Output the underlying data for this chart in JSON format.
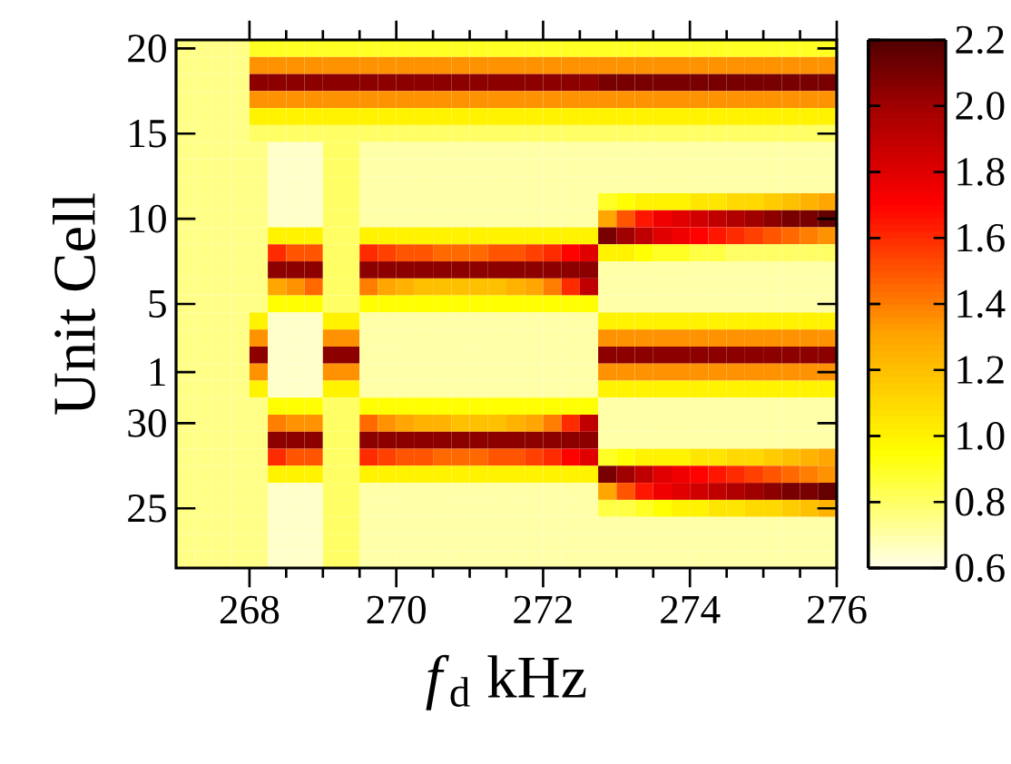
{
  "chart_data": {
    "type": "heatmap",
    "xlabel": "*f*$_{d}$ kHz",
    "ylabel": "Unit Cell",
    "x": [
      267.125,
      267.375,
      267.625,
      267.875,
      268.125,
      268.375,
      268.625,
      268.875,
      269.125,
      269.375,
      269.625,
      269.875,
      270.125,
      270.375,
      270.625,
      270.875,
      271.125,
      271.375,
      271.625,
      271.875,
      272.125,
      272.375,
      272.625,
      272.875,
      273.125,
      273.375,
      273.625,
      273.875,
      274.125,
      274.375,
      274.625,
      274.875,
      275.125,
      275.375,
      275.625,
      275.875
    ],
    "xlim": [
      267,
      276
    ],
    "xticks": [
      268,
      270,
      272,
      274,
      276
    ],
    "y_categories": [
      "20",
      null,
      null,
      null,
      null,
      "15",
      null,
      null,
      null,
      null,
      "10",
      null,
      null,
      null,
      null,
      "5",
      null,
      null,
      null,
      "1",
      null,
      null,
      "30",
      null,
      null,
      null,
      null,
      "25",
      null,
      null,
      null
    ],
    "clim": [
      0.6,
      2.2
    ],
    "cticks": [
      0.6,
      0.8,
      {
        "value": 1.0,
        "label": "1.0"
      },
      1.2,
      1.4,
      1.6,
      1.8,
      {
        "value": 2.0,
        "label": "2.0"
      },
      2.2
    ],
    "cells": [
      [
        0.75,
        0.75,
        0.75,
        0.75,
        0.9,
        0.9,
        0.9,
        0.9,
        0.9,
        0.9,
        0.9,
        0.9,
        0.9,
        0.9,
        0.9,
        0.9,
        0.9,
        0.9,
        0.9,
        0.9,
        0.9,
        0.9,
        0.9,
        0.9,
        0.9,
        0.9,
        0.9,
        0.9,
        0.9,
        0.9,
        0.9,
        0.9,
        0.9,
        0.9,
        0.9,
        0.9
      ],
      [
        0.75,
        0.75,
        0.75,
        0.75,
        1.35,
        1.35,
        1.35,
        1.35,
        1.35,
        1.35,
        1.35,
        1.35,
        1.35,
        1.35,
        1.35,
        1.35,
        1.35,
        1.35,
        1.35,
        1.35,
        1.35,
        1.35,
        1.35,
        1.35,
        1.35,
        1.35,
        1.35,
        1.35,
        1.35,
        1.35,
        1.35,
        1.35,
        1.35,
        1.35,
        1.35,
        1.35
      ],
      [
        0.75,
        0.75,
        0.75,
        0.75,
        2.05,
        2.05,
        2.05,
        2.05,
        2.05,
        2.05,
        2.05,
        2.05,
        2.05,
        2.05,
        2.05,
        2.05,
        2.05,
        2.05,
        2.05,
        2.05,
        2.05,
        2.05,
        2.05,
        2.1,
        2.1,
        2.1,
        2.1,
        2.1,
        2.1,
        2.1,
        2.1,
        2.1,
        2.1,
        2.1,
        2.1,
        2.1
      ],
      [
        0.75,
        0.75,
        0.75,
        0.75,
        1.35,
        1.35,
        1.35,
        1.35,
        1.35,
        1.35,
        1.35,
        1.35,
        1.35,
        1.35,
        1.35,
        1.35,
        1.35,
        1.35,
        1.35,
        1.35,
        1.35,
        1.35,
        1.35,
        1.35,
        1.35,
        1.35,
        1.35,
        1.35,
        1.35,
        1.35,
        1.35,
        1.35,
        1.35,
        1.35,
        1.35,
        1.35
      ],
      [
        0.75,
        0.75,
        0.75,
        0.75,
        1.0,
        1.0,
        1.0,
        1.0,
        1.0,
        1.0,
        1.0,
        1.0,
        1.0,
        1.0,
        1.0,
        1.0,
        1.0,
        1.0,
        1.0,
        1.0,
        1.0,
        1.0,
        1.0,
        1.0,
        1.0,
        1.0,
        1.0,
        1.0,
        1.0,
        1.0,
        1.0,
        1.0,
        1.0,
        1.0,
        1.0,
        1.0
      ],
      [
        0.75,
        0.75,
        0.75,
        0.75,
        0.8,
        0.8,
        0.8,
        0.8,
        0.8,
        0.8,
        0.8,
        0.8,
        0.8,
        0.8,
        0.8,
        0.8,
        0.8,
        0.8,
        0.8,
        0.8,
        0.8,
        0.8,
        0.8,
        0.8,
        0.8,
        0.8,
        0.8,
        0.8,
        0.8,
        0.8,
        0.8,
        0.8,
        0.8,
        0.8,
        0.8,
        0.8
      ],
      [
        0.75,
        0.75,
        0.75,
        0.75,
        0.75,
        0.65,
        0.65,
        0.65,
        0.8,
        0.8,
        0.7,
        0.7,
        0.7,
        0.7,
        0.7,
        0.7,
        0.7,
        0.7,
        0.7,
        0.7,
        0.7,
        0.7,
        0.7,
        0.7,
        0.7,
        0.7,
        0.7,
        0.7,
        0.7,
        0.7,
        0.7,
        0.7,
        0.7,
        0.7,
        0.7,
        0.7
      ],
      [
        0.75,
        0.75,
        0.75,
        0.75,
        0.75,
        0.65,
        0.65,
        0.65,
        0.8,
        0.8,
        0.7,
        0.7,
        0.7,
        0.7,
        0.7,
        0.7,
        0.7,
        0.7,
        0.7,
        0.7,
        0.7,
        0.7,
        0.7,
        0.7,
        0.7,
        0.7,
        0.7,
        0.7,
        0.7,
        0.7,
        0.7,
        0.7,
        0.7,
        0.7,
        0.7,
        0.7
      ],
      [
        0.75,
        0.75,
        0.75,
        0.75,
        0.75,
        0.65,
        0.65,
        0.65,
        0.8,
        0.8,
        0.7,
        0.7,
        0.7,
        0.7,
        0.7,
        0.7,
        0.7,
        0.7,
        0.7,
        0.7,
        0.7,
        0.7,
        0.7,
        0.7,
        0.7,
        0.7,
        0.7,
        0.7,
        0.7,
        0.7,
        0.7,
        0.7,
        0.7,
        0.7,
        0.7,
        0.7
      ],
      [
        0.75,
        0.75,
        0.75,
        0.75,
        0.75,
        0.65,
        0.65,
        0.65,
        0.8,
        0.8,
        0.7,
        0.7,
        0.7,
        0.7,
        0.7,
        0.7,
        0.7,
        0.7,
        0.7,
        0.7,
        0.7,
        0.7,
        0.7,
        0.9,
        0.95,
        1.0,
        1.0,
        1.0,
        1.05,
        1.05,
        1.1,
        1.1,
        1.15,
        1.2,
        1.25,
        1.3
      ],
      [
        0.75,
        0.75,
        0.75,
        0.75,
        0.75,
        0.65,
        0.65,
        0.65,
        0.8,
        0.8,
        0.7,
        0.7,
        0.7,
        0.7,
        0.7,
        0.7,
        0.7,
        0.7,
        0.7,
        0.7,
        0.7,
        0.7,
        0.7,
        1.3,
        1.5,
        1.65,
        1.75,
        1.8,
        1.85,
        1.9,
        1.95,
        2.0,
        2.05,
        2.1,
        2.1,
        2.15
      ],
      [
        0.75,
        0.75,
        0.75,
        0.75,
        0.75,
        1.0,
        1.0,
        1.0,
        0.8,
        0.8,
        1.0,
        1.0,
        1.0,
        1.0,
        1.0,
        1.0,
        1.0,
        1.0,
        1.0,
        1.0,
        1.0,
        1.0,
        1.0,
        2.1,
        2.0,
        1.9,
        1.8,
        1.75,
        1.7,
        1.65,
        1.6,
        1.55,
        1.5,
        1.45,
        1.4,
        1.35
      ],
      [
        0.75,
        0.75,
        0.75,
        0.75,
        0.75,
        1.6,
        1.5,
        1.5,
        0.8,
        0.8,
        1.6,
        1.55,
        1.5,
        1.5,
        1.45,
        1.45,
        1.45,
        1.5,
        1.5,
        1.55,
        1.6,
        1.7,
        1.8,
        1.0,
        1.0,
        0.95,
        0.9,
        0.9,
        0.85,
        0.85,
        0.8,
        0.8,
        0.8,
        0.8,
        0.8,
        0.8
      ],
      [
        0.75,
        0.75,
        0.75,
        0.75,
        0.75,
        2.05,
        2.05,
        2.05,
        0.8,
        0.8,
        2.05,
        2.05,
        2.05,
        2.05,
        2.05,
        2.05,
        2.05,
        2.05,
        2.05,
        2.05,
        2.05,
        2.05,
        2.05,
        0.7,
        0.7,
        0.7,
        0.7,
        0.7,
        0.7,
        0.7,
        0.7,
        0.7,
        0.7,
        0.7,
        0.7,
        0.7
      ],
      [
        0.75,
        0.75,
        0.75,
        0.75,
        0.75,
        1.3,
        1.35,
        1.45,
        0.8,
        0.8,
        1.4,
        1.3,
        1.25,
        1.2,
        1.2,
        1.2,
        1.2,
        1.2,
        1.25,
        1.3,
        1.4,
        1.6,
        1.9,
        0.7,
        0.7,
        0.7,
        0.7,
        0.7,
        0.7,
        0.7,
        0.7,
        0.7,
        0.7,
        0.7,
        0.7,
        0.7
      ],
      [
        0.75,
        0.75,
        0.75,
        0.75,
        0.75,
        0.95,
        0.95,
        0.95,
        0.8,
        0.8,
        0.95,
        0.95,
        0.95,
        0.95,
        0.95,
        0.95,
        0.95,
        0.95,
        0.95,
        0.95,
        0.95,
        0.95,
        0.95,
        0.7,
        0.7,
        0.7,
        0.7,
        0.7,
        0.7,
        0.7,
        0.7,
        0.7,
        0.7,
        0.7,
        0.7,
        0.7
      ],
      [
        0.75,
        0.75,
        0.75,
        0.75,
        1.0,
        0.65,
        0.65,
        0.65,
        1.0,
        1.0,
        0.7,
        0.7,
        0.7,
        0.7,
        0.7,
        0.7,
        0.7,
        0.7,
        0.7,
        0.7,
        0.7,
        0.7,
        0.7,
        1.0,
        1.0,
        1.0,
        1.0,
        1.0,
        1.0,
        1.0,
        1.0,
        1.0,
        1.0,
        1.0,
        1.0,
        1.0
      ],
      [
        0.75,
        0.75,
        0.75,
        0.75,
        1.35,
        0.65,
        0.65,
        0.65,
        1.35,
        1.35,
        0.7,
        0.7,
        0.7,
        0.7,
        0.7,
        0.7,
        0.7,
        0.7,
        0.7,
        0.7,
        0.7,
        0.7,
        0.7,
        1.35,
        1.35,
        1.35,
        1.35,
        1.35,
        1.35,
        1.35,
        1.35,
        1.35,
        1.35,
        1.35,
        1.35,
        1.35
      ],
      [
        0.75,
        0.75,
        0.75,
        0.75,
        2.05,
        0.65,
        0.65,
        0.65,
        2.05,
        2.05,
        0.7,
        0.7,
        0.7,
        0.7,
        0.7,
        0.7,
        0.7,
        0.7,
        0.7,
        0.7,
        0.7,
        0.7,
        0.7,
        2.05,
        2.05,
        2.05,
        2.05,
        2.05,
        2.05,
        2.05,
        2.05,
        2.05,
        2.05,
        2.05,
        2.05,
        2.05
      ],
      [
        0.75,
        0.75,
        0.75,
        0.75,
        1.35,
        0.65,
        0.65,
        0.65,
        1.35,
        1.35,
        0.7,
        0.7,
        0.7,
        0.7,
        0.7,
        0.7,
        0.7,
        0.7,
        0.7,
        0.7,
        0.7,
        0.7,
        0.7,
        1.35,
        1.35,
        1.35,
        1.35,
        1.35,
        1.35,
        1.35,
        1.35,
        1.35,
        1.35,
        1.35,
        1.35,
        1.35
      ],
      [
        0.75,
        0.75,
        0.75,
        0.75,
        1.0,
        0.65,
        0.65,
        0.65,
        1.0,
        1.0,
        0.7,
        0.7,
        0.7,
        0.7,
        0.7,
        0.7,
        0.7,
        0.7,
        0.7,
        0.7,
        0.7,
        0.7,
        0.7,
        1.0,
        1.0,
        1.0,
        1.0,
        1.0,
        1.0,
        1.0,
        1.0,
        1.0,
        1.0,
        1.0,
        1.0,
        1.0
      ],
      [
        0.75,
        0.75,
        0.75,
        0.75,
        0.75,
        0.95,
        0.95,
        0.95,
        0.8,
        0.8,
        0.95,
        0.95,
        0.95,
        0.95,
        0.95,
        0.95,
        0.95,
        0.95,
        0.95,
        0.95,
        0.95,
        0.95,
        0.95,
        0.7,
        0.7,
        0.7,
        0.7,
        0.7,
        0.7,
        0.7,
        0.7,
        0.7,
        0.7,
        0.7,
        0.7,
        0.7
      ],
      [
        0.75,
        0.75,
        0.75,
        0.75,
        0.75,
        1.4,
        1.35,
        1.35,
        0.8,
        0.8,
        1.45,
        1.35,
        1.3,
        1.25,
        1.25,
        1.2,
        1.2,
        1.2,
        1.25,
        1.3,
        1.4,
        1.6,
        1.9,
        0.7,
        0.7,
        0.7,
        0.7,
        0.7,
        0.7,
        0.7,
        0.7,
        0.7,
        0.7,
        0.7,
        0.7,
        0.7
      ],
      [
        0.75,
        0.75,
        0.75,
        0.75,
        0.75,
        2.05,
        2.05,
        2.05,
        0.8,
        0.8,
        2.05,
        2.05,
        2.05,
        2.05,
        2.05,
        2.05,
        2.05,
        2.05,
        2.05,
        2.05,
        2.05,
        2.05,
        2.05,
        0.7,
        0.7,
        0.7,
        0.7,
        0.7,
        0.7,
        0.7,
        0.7,
        0.7,
        0.7,
        0.7,
        0.7,
        0.7
      ],
      [
        0.75,
        0.75,
        0.75,
        0.75,
        0.75,
        1.6,
        1.5,
        1.5,
        0.8,
        0.8,
        1.6,
        1.55,
        1.5,
        1.5,
        1.45,
        1.45,
        1.45,
        1.5,
        1.5,
        1.55,
        1.6,
        1.7,
        1.8,
        0.9,
        0.95,
        1.0,
        1.0,
        1.0,
        1.05,
        1.05,
        1.1,
        1.1,
        1.15,
        1.2,
        1.25,
        1.3
      ],
      [
        0.75,
        0.75,
        0.75,
        0.75,
        0.75,
        1.0,
        1.0,
        1.0,
        0.8,
        0.8,
        1.0,
        1.0,
        1.0,
        1.0,
        1.0,
        1.0,
        1.0,
        1.0,
        1.0,
        1.0,
        1.0,
        1.0,
        1.0,
        2.1,
        2.0,
        1.9,
        1.8,
        1.75,
        1.7,
        1.65,
        1.6,
        1.55,
        1.5,
        1.45,
        1.4,
        1.35
      ],
      [
        0.75,
        0.75,
        0.75,
        0.75,
        0.75,
        0.65,
        0.65,
        0.65,
        0.8,
        0.8,
        0.7,
        0.7,
        0.7,
        0.7,
        0.7,
        0.7,
        0.7,
        0.7,
        0.7,
        0.7,
        0.7,
        0.7,
        0.7,
        1.3,
        1.5,
        1.65,
        1.75,
        1.8,
        1.85,
        1.9,
        1.95,
        2.0,
        2.05,
        2.1,
        2.1,
        2.15
      ],
      [
        0.75,
        0.75,
        0.75,
        0.75,
        0.75,
        0.65,
        0.65,
        0.65,
        0.8,
        0.8,
        0.7,
        0.7,
        0.7,
        0.7,
        0.7,
        0.7,
        0.7,
        0.7,
        0.7,
        0.7,
        0.7,
        0.7,
        0.7,
        0.85,
        0.85,
        0.9,
        0.95,
        1.0,
        1.0,
        1.05,
        1.05,
        1.1,
        1.1,
        1.15,
        1.2,
        1.25
      ],
      [
        0.75,
        0.75,
        0.75,
        0.75,
        0.75,
        0.65,
        0.65,
        0.65,
        0.8,
        0.8,
        0.7,
        0.7,
        0.7,
        0.7,
        0.7,
        0.7,
        0.7,
        0.7,
        0.7,
        0.7,
        0.7,
        0.7,
        0.7,
        0.7,
        0.7,
        0.7,
        0.7,
        0.7,
        0.7,
        0.7,
        0.7,
        0.7,
        0.7,
        0.7,
        0.7,
        0.7
      ],
      [
        0.75,
        0.75,
        0.75,
        0.75,
        0.75,
        0.65,
        0.65,
        0.65,
        0.8,
        0.8,
        0.7,
        0.7,
        0.7,
        0.7,
        0.7,
        0.7,
        0.7,
        0.7,
        0.7,
        0.7,
        0.7,
        0.7,
        0.7,
        0.7,
        0.7,
        0.7,
        0.7,
        0.7,
        0.7,
        0.7,
        0.7,
        0.7,
        0.7,
        0.7,
        0.7,
        0.7
      ],
      [
        0.75,
        0.75,
        0.75,
        0.75,
        0.75,
        0.65,
        0.65,
        0.65,
        0.8,
        0.8,
        0.7,
        0.7,
        0.7,
        0.7,
        0.7,
        0.7,
        0.7,
        0.7,
        0.7,
        0.7,
        0.7,
        0.7,
        0.7,
        0.7,
        0.7,
        0.7,
        0.7,
        0.7,
        0.7,
        0.7,
        0.7,
        0.7,
        0.7,
        0.7,
        0.7,
        0.7
      ]
    ]
  }
}
